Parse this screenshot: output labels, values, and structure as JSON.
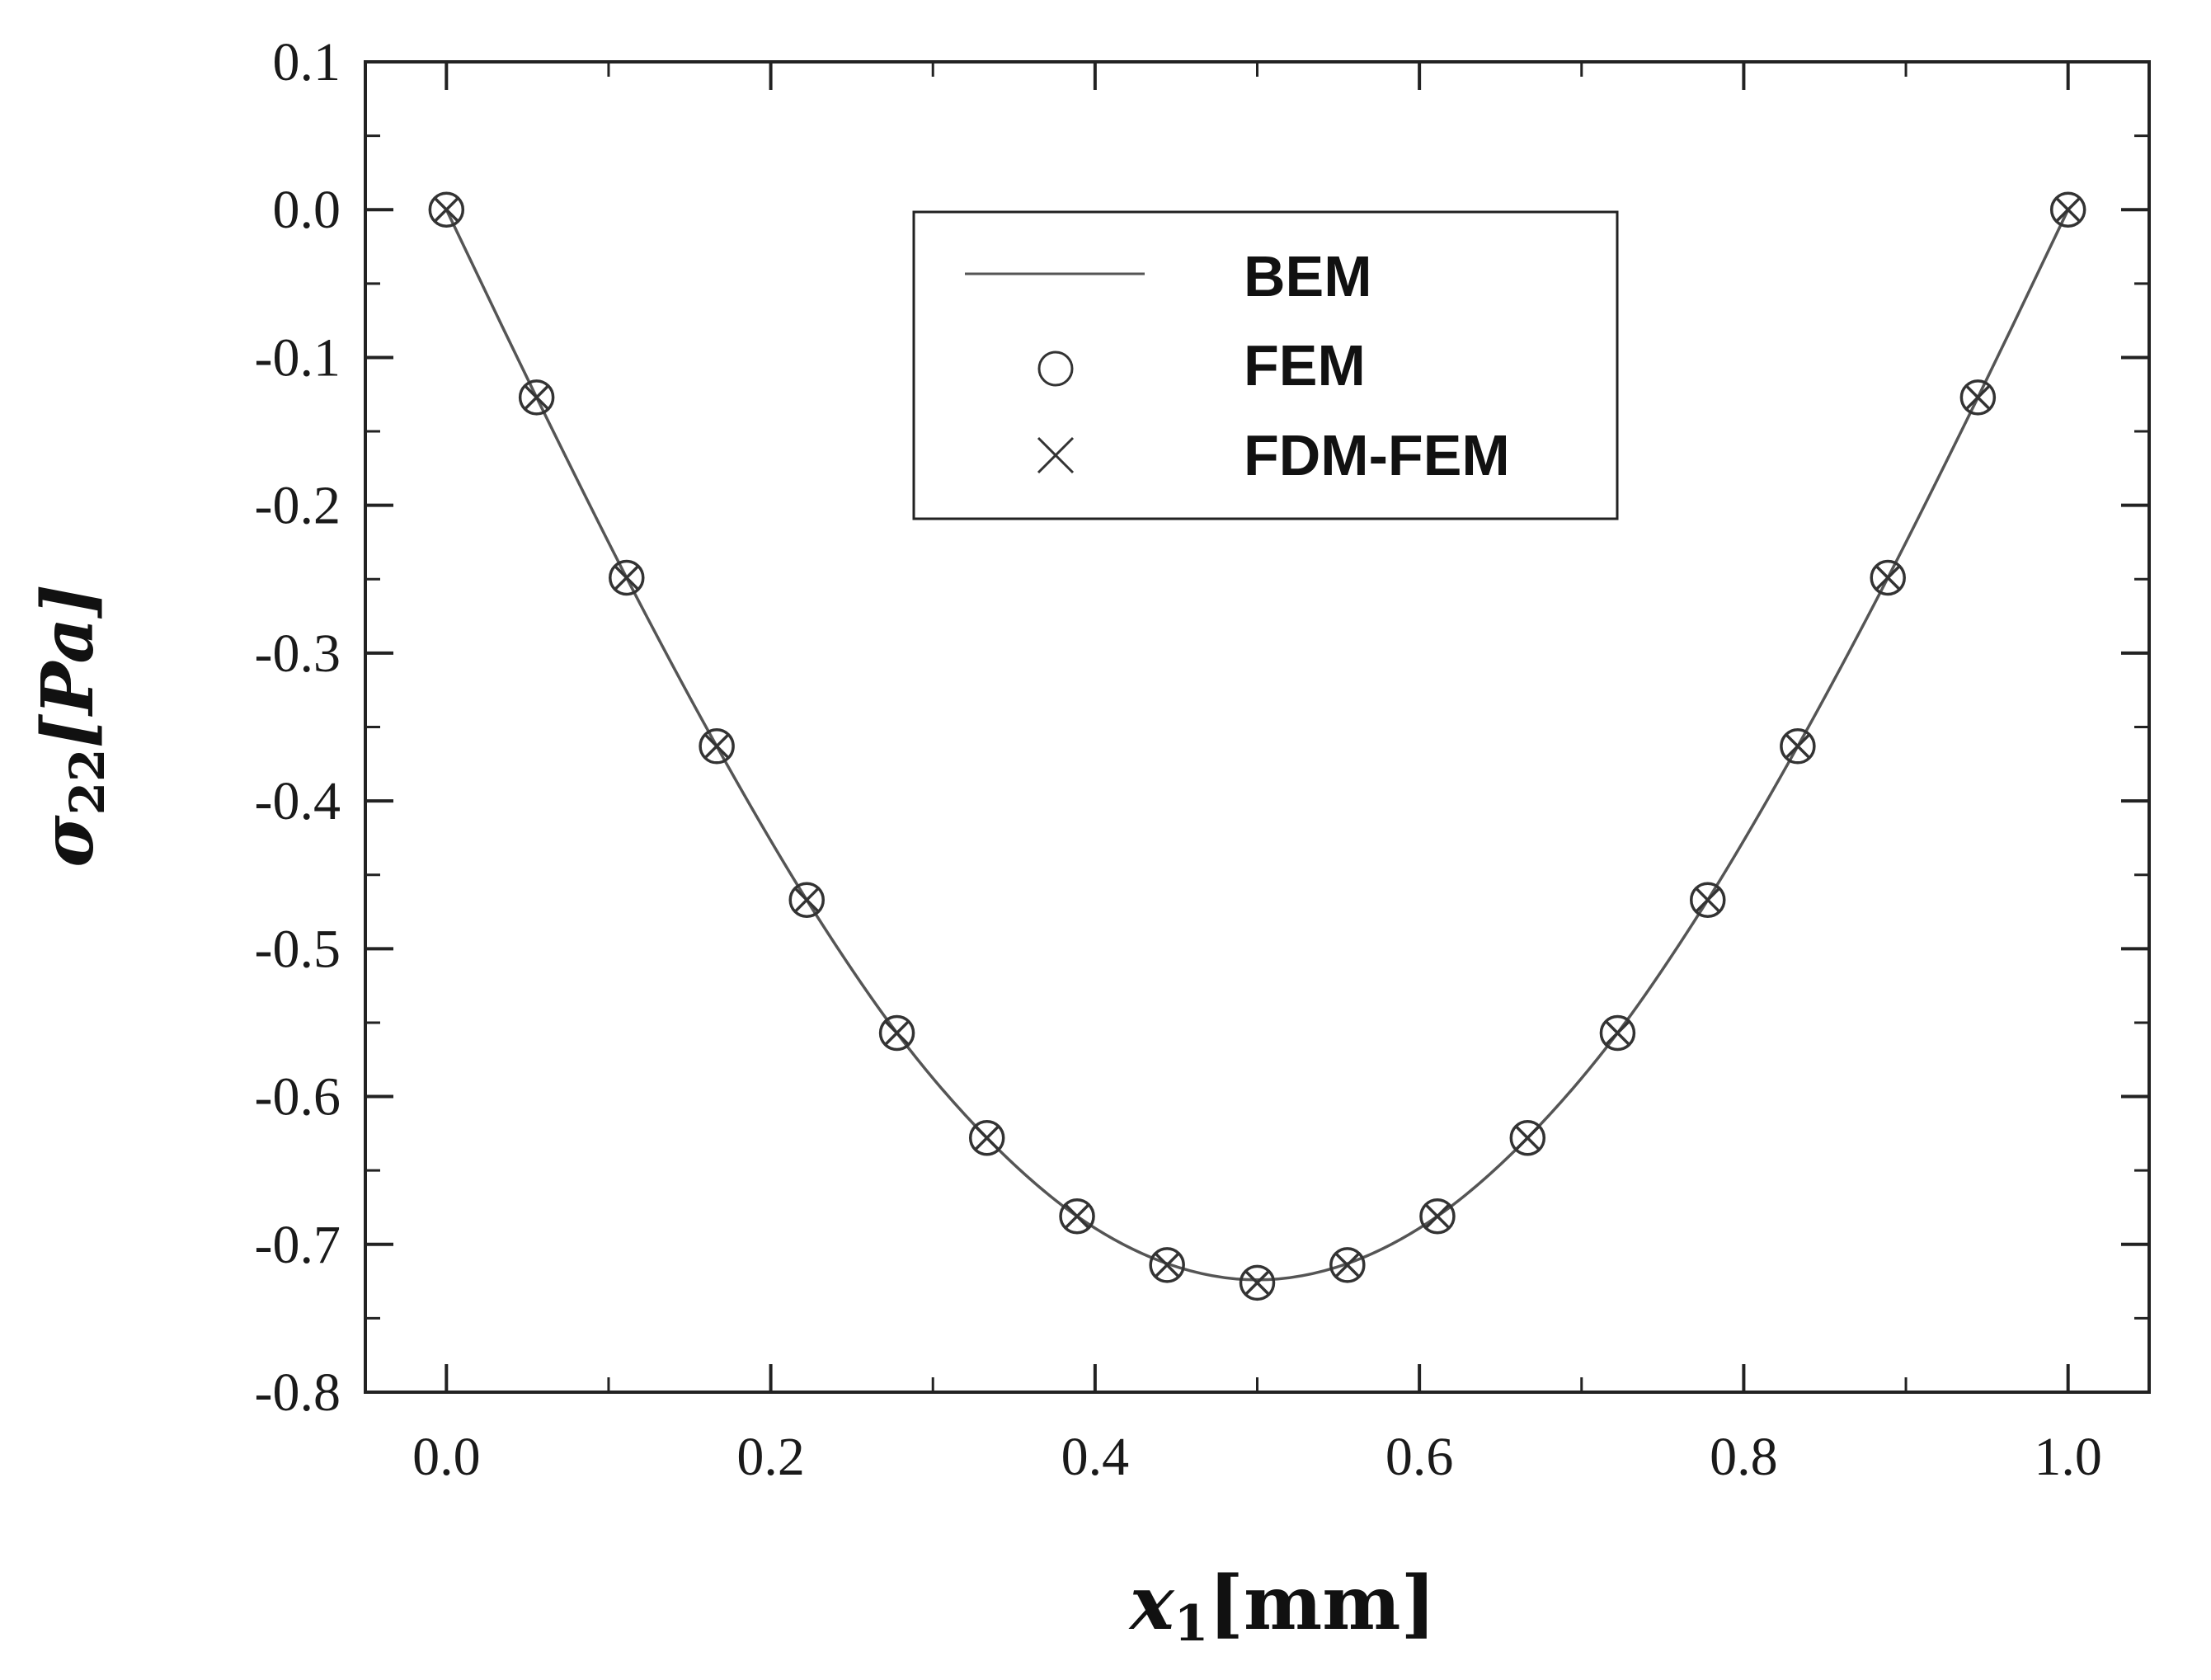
{
  "chart_data": {
    "type": "line",
    "xlabel": "x",
    "xlabel_sub": "1",
    "xlabel_unit": "[mm]",
    "ylabel": "σ",
    "ylabel_sub": "22",
    "ylabel_unit": "[Pa]",
    "xlim": [
      -0.05,
      1.05
    ],
    "ylim": [
      -0.8,
      0.1
    ],
    "xticks": [
      "0.0",
      "0.2",
      "0.4",
      "0.6",
      "0.8",
      "1.0"
    ],
    "yticks": [
      "0.1",
      "0.0",
      "-0.1",
      "-0.2",
      "-0.3",
      "-0.4",
      "-0.5",
      "-0.6",
      "-0.7",
      "-0.8"
    ],
    "grid": false,
    "legend_position": "top-center",
    "x": [
      0.0,
      0.0556,
      0.1111,
      0.1667,
      0.2222,
      0.2778,
      0.3333,
      0.3889,
      0.4444,
      0.5,
      0.5556,
      0.6111,
      0.6667,
      0.7222,
      0.7778,
      0.8333,
      0.8889,
      0.9444,
      1.0
    ],
    "series": [
      {
        "name": "BEM",
        "style": "line",
        "values": [
          0.0,
          -0.127,
          -0.249,
          -0.363,
          -0.467,
          -0.557,
          -0.628,
          -0.681,
          -0.713,
          -0.724,
          -0.713,
          -0.681,
          -0.628,
          -0.557,
          -0.467,
          -0.363,
          -0.249,
          -0.127,
          0.0
        ]
      },
      {
        "name": "FEM",
        "style": "circle-marker",
        "values": [
          0.0,
          -0.127,
          -0.249,
          -0.363,
          -0.467,
          -0.557,
          -0.628,
          -0.681,
          -0.714,
          -0.726,
          -0.714,
          -0.681,
          -0.628,
          -0.557,
          -0.467,
          -0.363,
          -0.249,
          -0.127,
          0.0
        ]
      },
      {
        "name": "FDM-FEM",
        "style": "x-marker",
        "values": [
          0.0,
          -0.127,
          -0.249,
          -0.363,
          -0.467,
          -0.557,
          -0.628,
          -0.681,
          -0.714,
          -0.726,
          -0.714,
          -0.681,
          -0.628,
          -0.557,
          -0.467,
          -0.363,
          -0.249,
          -0.127,
          0.0
        ]
      }
    ],
    "colors": {
      "line": "#555555",
      "marker": "#333333",
      "axis": "#222222"
    }
  }
}
